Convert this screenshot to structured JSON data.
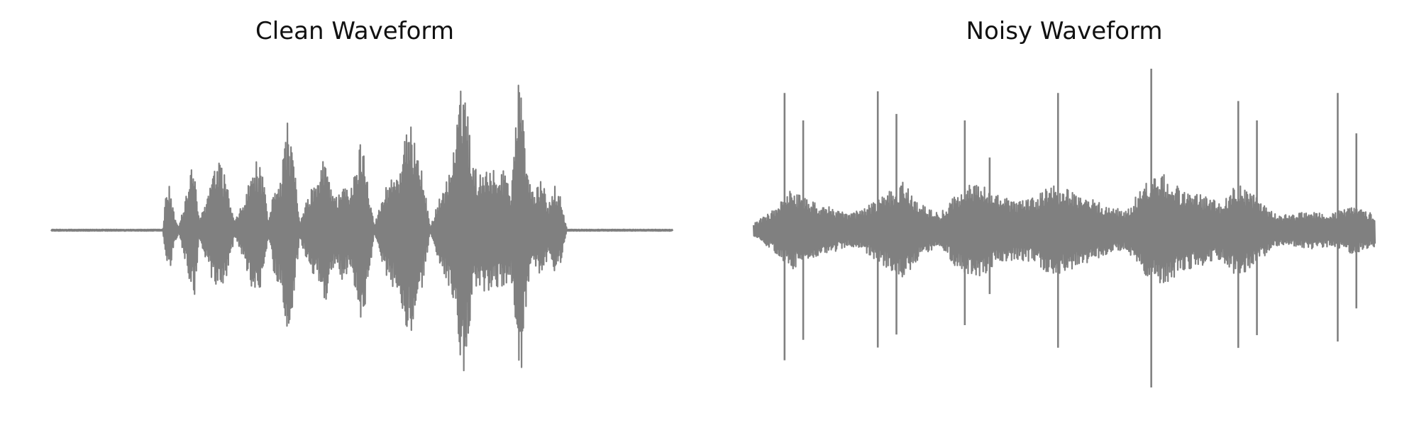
{
  "colors": {
    "waveform": "#808080",
    "background": "#ffffff",
    "title": "#111111"
  },
  "chart_data": [
    {
      "type": "line",
      "title": "Clean Waveform",
      "xlabel": "",
      "ylabel": "",
      "grid": false,
      "axes_visible": false,
      "ylim": [
        -1.0,
        1.0
      ],
      "xlim": [
        0.0,
        1.0
      ],
      "silence_regions": [
        [
          0.0,
          0.18
        ],
        [
          0.83,
          1.0
        ]
      ],
      "envelope": [
        [
          0.0,
          0.005
        ],
        [
          0.18,
          0.005
        ],
        [
          0.185,
          0.25
        ],
        [
          0.19,
          0.28
        ],
        [
          0.197,
          0.12
        ],
        [
          0.205,
          0.02
        ],
        [
          0.215,
          0.18
        ],
        [
          0.225,
          0.38
        ],
        [
          0.232,
          0.4
        ],
        [
          0.238,
          0.05
        ],
        [
          0.25,
          0.2
        ],
        [
          0.26,
          0.35
        ],
        [
          0.27,
          0.42
        ],
        [
          0.28,
          0.35
        ],
        [
          0.295,
          0.05
        ],
        [
          0.31,
          0.18
        ],
        [
          0.32,
          0.32
        ],
        [
          0.33,
          0.43
        ],
        [
          0.34,
          0.36
        ],
        [
          0.35,
          0.05
        ],
        [
          0.36,
          0.3
        ],
        [
          0.37,
          0.35
        ],
        [
          0.38,
          0.7
        ],
        [
          0.39,
          0.45
        ],
        [
          0.4,
          0.05
        ],
        [
          0.42,
          0.28
        ],
        [
          0.43,
          0.3
        ],
        [
          0.44,
          0.48
        ],
        [
          0.45,
          0.3
        ],
        [
          0.46,
          0.2
        ],
        [
          0.47,
          0.35
        ],
        [
          0.48,
          0.2
        ],
        [
          0.5,
          0.6
        ],
        [
          0.51,
          0.33
        ],
        [
          0.52,
          0.03
        ],
        [
          0.54,
          0.29
        ],
        [
          0.55,
          0.35
        ],
        [
          0.56,
          0.38
        ],
        [
          0.57,
          0.58
        ],
        [
          0.58,
          0.65
        ],
        [
          0.59,
          0.55
        ],
        [
          0.61,
          0.02
        ],
        [
          0.625,
          0.2
        ],
        [
          0.64,
          0.35
        ],
        [
          0.65,
          0.55
        ],
        [
          0.66,
          0.9
        ],
        [
          0.665,
          1.0
        ],
        [
          0.67,
          0.75
        ],
        [
          0.68,
          0.4
        ],
        [
          0.69,
          0.35
        ],
        [
          0.7,
          0.42
        ],
        [
          0.71,
          0.38
        ],
        [
          0.72,
          0.35
        ],
        [
          0.73,
          0.4
        ],
        [
          0.74,
          0.25
        ],
        [
          0.75,
          0.9
        ],
        [
          0.755,
          0.95
        ],
        [
          0.76,
          0.7
        ],
        [
          0.77,
          0.3
        ],
        [
          0.78,
          0.25
        ],
        [
          0.79,
          0.32
        ],
        [
          0.8,
          0.15
        ],
        [
          0.81,
          0.28
        ],
        [
          0.82,
          0.2
        ],
        [
          0.83,
          0.005
        ],
        [
          1.0,
          0.005
        ]
      ]
    },
    {
      "type": "line",
      "title": "Noisy Waveform",
      "xlabel": "",
      "ylabel": "",
      "grid": false,
      "axes_visible": false,
      "ylim": [
        -1.0,
        1.0
      ],
      "xlim": [
        0.0,
        1.0
      ],
      "spikes": [
        [
          0.05,
          0.85
        ],
        [
          0.08,
          0.68
        ],
        [
          0.2,
          0.86
        ],
        [
          0.23,
          0.72
        ],
        [
          0.34,
          0.68
        ],
        [
          0.38,
          0.45
        ],
        [
          0.49,
          0.85
        ],
        [
          0.64,
          1.0
        ],
        [
          0.78,
          0.8
        ],
        [
          0.81,
          0.68
        ],
        [
          0.94,
          0.85
        ],
        [
          0.97,
          0.6
        ]
      ],
      "envelope": [
        [
          0.0,
          0.04
        ],
        [
          0.03,
          0.12
        ],
        [
          0.06,
          0.25
        ],
        [
          0.09,
          0.18
        ],
        [
          0.12,
          0.15
        ],
        [
          0.15,
          0.1
        ],
        [
          0.18,
          0.14
        ],
        [
          0.21,
          0.22
        ],
        [
          0.24,
          0.3
        ],
        [
          0.27,
          0.16
        ],
        [
          0.3,
          0.1
        ],
        [
          0.33,
          0.25
        ],
        [
          0.36,
          0.3
        ],
        [
          0.39,
          0.22
        ],
        [
          0.42,
          0.18
        ],
        [
          0.45,
          0.2
        ],
        [
          0.48,
          0.28
        ],
        [
          0.51,
          0.25
        ],
        [
          0.54,
          0.2
        ],
        [
          0.57,
          0.15
        ],
        [
          0.6,
          0.12
        ],
        [
          0.63,
          0.3
        ],
        [
          0.66,
          0.35
        ],
        [
          0.69,
          0.25
        ],
        [
          0.72,
          0.22
        ],
        [
          0.75,
          0.18
        ],
        [
          0.78,
          0.3
        ],
        [
          0.81,
          0.2
        ],
        [
          0.84,
          0.1
        ],
        [
          0.87,
          0.1
        ],
        [
          0.9,
          0.12
        ],
        [
          0.93,
          0.1
        ],
        [
          0.96,
          0.15
        ],
        [
          1.0,
          0.1
        ]
      ]
    }
  ]
}
